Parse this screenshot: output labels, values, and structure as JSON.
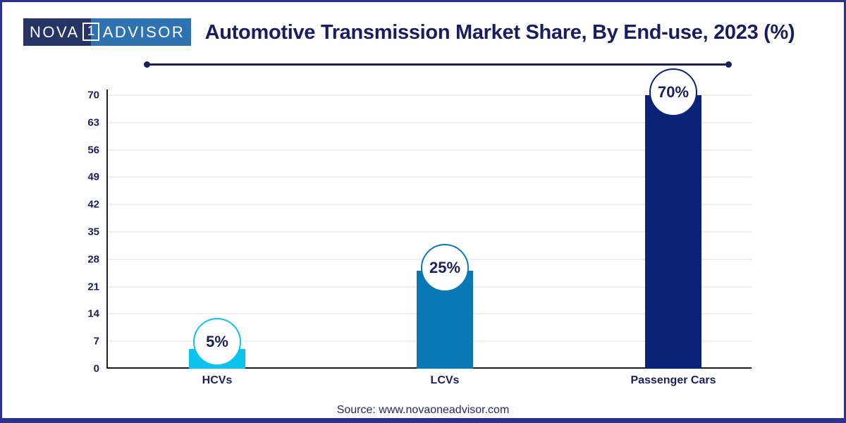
{
  "logo": {
    "part1": "NOVA",
    "middle": "1",
    "part2": "ADVISOR",
    "dark_bg": "#263465",
    "light_bg": "#2f72b2"
  },
  "header": {
    "title": "Automotive Transmission Market Share, By End-use, 2023 (%)"
  },
  "footer": {
    "source": "Source: www.novaoneadvisor.com"
  },
  "colors": {
    "navy_text": "#1b1f5a",
    "title_navy": "#191d5e",
    "frame_navy": "#2d3192",
    "deco_line": "#1b2153",
    "gridline": "#efefef",
    "axis": "#1c1c28"
  },
  "chart_data": {
    "type": "bar",
    "title": "Automotive Transmission Market Share, By End-use, 2023 (%)",
    "categories": [
      "HCVs",
      "LCVs",
      "Passenger Cars"
    ],
    "values": [
      5,
      25,
      70
    ],
    "value_labels": [
      "5%",
      "25%",
      "70%"
    ],
    "bar_colors": [
      "#0cc3ee",
      "#0b78b6",
      "#0a2377"
    ],
    "xlabel": "",
    "ylabel": "",
    "ylim": [
      0,
      70
    ],
    "yticks": [
      0,
      7,
      14,
      21,
      28,
      35,
      42,
      49,
      56,
      63,
      70
    ],
    "grid": true,
    "legend": false
  }
}
